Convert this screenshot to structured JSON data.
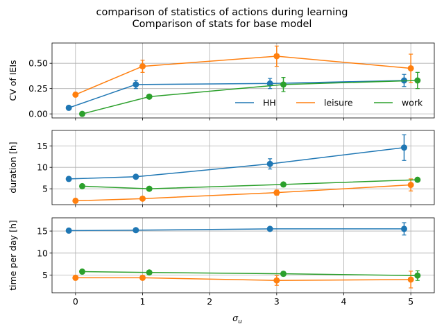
{
  "figure": {
    "suptitle_line1": "comparison of statistics of actions during learning",
    "suptitle_line2": "Comparison of stats for base model",
    "xlabel": "σ",
    "xlabel_sub": "u",
    "colors": {
      "HH": "#1f77b4",
      "leisure": "#ff7f0e",
      "work": "#2ca02c",
      "grid": "#b0b0b0"
    }
  },
  "chart_data": [
    {
      "type": "line",
      "ylabel": "CV of IEIs",
      "xlim": [
        -0.35,
        5.35
      ],
      "ylim": [
        -0.04,
        0.7
      ],
      "xticks": [
        0,
        1,
        2,
        3,
        4,
        5
      ],
      "yticks": [
        0.0,
        0.25,
        0.5
      ],
      "ytick_labels": [
        "0.00",
        "0.25",
        "0.50"
      ],
      "show_xticklabels": false,
      "grid": true,
      "legend": {
        "placement": "lower-right",
        "ncol": 3
      },
      "series": [
        {
          "name": "HH",
          "x": [
            -0.1,
            0.9,
            2.9,
            4.9
          ],
          "y": [
            0.06,
            0.29,
            0.3,
            0.33
          ],
          "err": [
            0.0,
            0.04,
            0.05,
            0.06
          ]
        },
        {
          "name": "leisure",
          "x": [
            0.0,
            1.0,
            3.0,
            5.0
          ],
          "y": [
            0.19,
            0.47,
            0.57,
            0.45
          ],
          "err": [
            0.0,
            0.06,
            0.1,
            0.14
          ]
        },
        {
          "name": "work",
          "x": [
            0.1,
            1.1,
            3.1,
            5.1
          ],
          "y": [
            0.0,
            0.17,
            0.29,
            0.33
          ],
          "err": [
            0.0,
            0.0,
            0.07,
            0.08
          ]
        }
      ]
    },
    {
      "type": "line",
      "ylabel": "duration [h]",
      "xlim": [
        -0.35,
        5.35
      ],
      "ylim": [
        1.3,
        18.6
      ],
      "xticks": [
        0,
        1,
        2,
        3,
        4,
        5
      ],
      "yticks": [
        5,
        10,
        15
      ],
      "ytick_labels": [
        "5",
        "10",
        "15"
      ],
      "show_xticklabels": false,
      "grid": true,
      "series": [
        {
          "name": "HH",
          "x": [
            -0.1,
            0.9,
            2.9,
            4.9
          ],
          "y": [
            7.3,
            7.8,
            10.8,
            14.6
          ],
          "err": [
            0.0,
            0.0,
            1.2,
            3.0
          ]
        },
        {
          "name": "leisure",
          "x": [
            0.0,
            1.0,
            3.0,
            5.0
          ],
          "y": [
            2.2,
            2.7,
            4.1,
            5.9
          ],
          "err": [
            0.0,
            0.0,
            0.6,
            1.4
          ]
        },
        {
          "name": "work",
          "x": [
            0.1,
            1.1,
            3.1,
            5.1
          ],
          "y": [
            5.6,
            5.0,
            6.0,
            7.1
          ],
          "err": [
            0.0,
            0.0,
            0.0,
            0.0
          ]
        }
      ]
    },
    {
      "type": "line",
      "ylabel": "time per day [h]",
      "xlim": [
        -0.35,
        5.35
      ],
      "ylim": [
        1.0,
        18.0
      ],
      "xticks": [
        0,
        1,
        2,
        3,
        4,
        5
      ],
      "xtick_labels": [
        "0",
        "1",
        "2",
        "3",
        "4",
        "5"
      ],
      "yticks": [
        5,
        10,
        15
      ],
      "ytick_labels": [
        "5",
        "10",
        "15"
      ],
      "show_xticklabels": true,
      "grid": true,
      "series": [
        {
          "name": "HH",
          "x": [
            -0.1,
            0.9,
            2.9,
            4.9
          ],
          "y": [
            15.1,
            15.2,
            15.5,
            15.5
          ],
          "err": [
            0.0,
            0.0,
            0.0,
            1.4
          ]
        },
        {
          "name": "leisure",
          "x": [
            0.0,
            1.0,
            3.0,
            5.0
          ],
          "y": [
            4.4,
            4.4,
            3.8,
            4.0
          ],
          "err": [
            0.0,
            0.0,
            1.1,
            1.9
          ]
        },
        {
          "name": "work",
          "x": [
            0.1,
            1.1,
            3.1,
            5.1
          ],
          "y": [
            5.8,
            5.6,
            5.3,
            4.9
          ],
          "err": [
            0.0,
            0.0,
            0.5,
            1.1
          ]
        }
      ]
    }
  ]
}
